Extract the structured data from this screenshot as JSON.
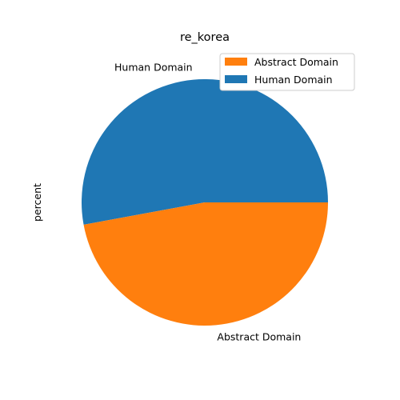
{
  "chart_data": {
    "type": "pie",
    "title": "re_korea",
    "ylabel": "percent",
    "slices": [
      {
        "label": "Human Domain",
        "value": 52.9,
        "color": "#1f77b4"
      },
      {
        "label": "Abstract Domain",
        "value": 47.1,
        "color": "#ff7f0e"
      }
    ],
    "legend": {
      "placement": "top-right",
      "entries": [
        {
          "label": "Abstract Domain",
          "color": "#ff7f0e"
        },
        {
          "label": "Human Domain",
          "color": "#1f77b4"
        }
      ]
    }
  }
}
